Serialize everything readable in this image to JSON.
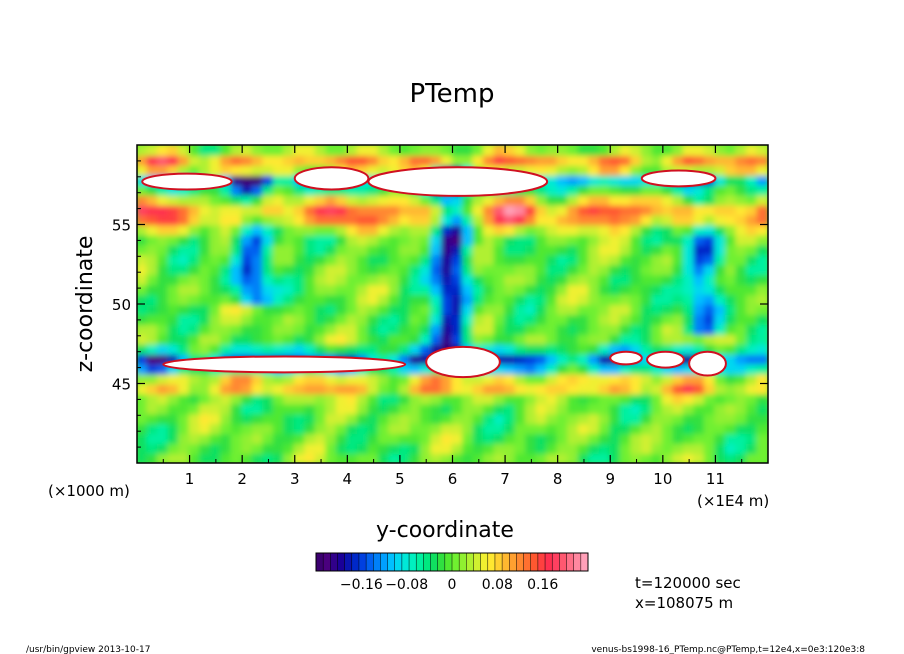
{
  "chart_data": {
    "type": "heatmap",
    "title": "PTemp",
    "xlabel": "y-coordinate",
    "ylabel": "z-coordinate",
    "x_unit_left": "(×1000 m)",
    "x_unit_right": "(×1E4 m)",
    "xlim": [
      0,
      12
    ],
    "ylim": [
      40,
      60
    ],
    "x_ticks": [
      1,
      2,
      3,
      4,
      5,
      6,
      7,
      8,
      9,
      10,
      11
    ],
    "x_tick_labels": [
      "1",
      "2",
      "3",
      "4",
      "5",
      "6",
      "7",
      "8",
      "9",
      "10",
      "11"
    ],
    "y_ticks": [
      45,
      50,
      55
    ],
    "y_tick_labels": [
      "45",
      "50",
      "55"
    ],
    "colorbar": {
      "range": [
        -0.24,
        0.24
      ],
      "tick_values": [
        -0.16,
        -0.08,
        0,
        0.08,
        0.16
      ],
      "tick_labels": [
        "−0.16",
        "−0.08",
        "0",
        "0.08",
        "0.16"
      ],
      "colors": [
        "#3c0070",
        "#4a007e",
        "#30008a",
        "#1a0098",
        "#0a14b0",
        "#0028c8",
        "#0040e0",
        "#0060f0",
        "#0080f8",
        "#00a0ff",
        "#00c0ff",
        "#00d8f0",
        "#00e8d8",
        "#00f0c0",
        "#00f0a0",
        "#00e880",
        "#10e060",
        "#30e040",
        "#50e830",
        "#70f030",
        "#90f030",
        "#b0f030",
        "#d0f030",
        "#f0f030",
        "#ffe830",
        "#ffd030",
        "#ffb830",
        "#ffa030",
        "#ff8830",
        "#ff7030",
        "#ff5830",
        "#ff4040",
        "#ff3050",
        "#ff4060",
        "#ff5870",
        "#ff7088",
        "#ff88a0",
        "#ffa0b8"
      ]
    },
    "features": [
      {
        "kind": "band",
        "z": [
          55,
          56.5
        ],
        "level": 0.18
      },
      {
        "kind": "band",
        "z": [
          58.3,
          59.3
        ],
        "level": 0.15
      },
      {
        "kind": "band",
        "z": [
          57.5,
          58.2
        ],
        "level": -0.16
      },
      {
        "kind": "band",
        "z": [
          46,
          47
        ],
        "level": -0.18
      },
      {
        "kind": "band",
        "z": [
          44.5,
          45.3
        ],
        "level": 0.12
      },
      {
        "kind": "plume",
        "y": 6.0,
        "z": [
          47,
          59
        ],
        "level": -0.2
      },
      {
        "kind": "plume",
        "y": 2.2,
        "z": [
          50,
          58
        ],
        "level": -0.17
      },
      {
        "kind": "plume",
        "y": 10.8,
        "z": [
          48,
          57
        ],
        "level": -0.15
      }
    ],
    "white_regions": [
      {
        "y": [
          0.1,
          1.8
        ],
        "z": [
          57.2,
          58.2
        ]
      },
      {
        "y": [
          3.0,
          4.4
        ],
        "z": [
          57.2,
          58.6
        ]
      },
      {
        "y": [
          4.4,
          7.8
        ],
        "z": [
          56.8,
          58.6
        ]
      },
      {
        "y": [
          9.6,
          11.0
        ],
        "z": [
          57.4,
          58.4
        ]
      },
      {
        "y": [
          0.5,
          5.1
        ],
        "z": [
          45.7,
          46.7
        ]
      },
      {
        "y": [
          5.5,
          6.9
        ],
        "z": [
          45.4,
          47.3
        ]
      },
      {
        "y": [
          9.0,
          9.6
        ],
        "z": [
          46.2,
          47.0
        ]
      },
      {
        "y": [
          9.7,
          10.4
        ],
        "z": [
          46.0,
          47.0
        ]
      },
      {
        "y": [
          10.5,
          11.2
        ],
        "z": [
          45.5,
          47.0
        ]
      }
    ]
  },
  "info": {
    "time": "t=120000 sec",
    "position": "x=108075 m"
  },
  "footer": {
    "left": "/usr/bin/gpview   2013-10-17",
    "right": "venus-bs1998-16_PTemp.nc@PTemp,t=12e4,x=0e3:120e3:8"
  }
}
